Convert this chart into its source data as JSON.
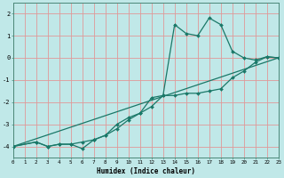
{
  "title": "",
  "xlabel": "Humidex (Indice chaleur)",
  "bg_color": "#c0e8e8",
  "grid_color": "#e09898",
  "line_color": "#1a7868",
  "xlim": [
    0,
    23
  ],
  "ylim": [
    -4.5,
    2.5
  ],
  "yticks": [
    -4,
    -3,
    -2,
    -1,
    0,
    1,
    2
  ],
  "xticks": [
    0,
    1,
    2,
    3,
    4,
    5,
    6,
    7,
    8,
    9,
    10,
    11,
    12,
    13,
    14,
    15,
    16,
    17,
    18,
    19,
    20,
    21,
    22,
    23
  ],
  "line1_x": [
    0,
    2,
    3,
    4,
    5,
    6,
    7,
    8,
    9,
    10,
    11,
    12,
    13,
    14,
    15,
    16,
    17,
    18,
    19,
    20,
    21,
    22,
    23
  ],
  "line1_y": [
    -4.0,
    -3.8,
    -4.0,
    -3.9,
    -3.9,
    -4.1,
    -3.7,
    -3.5,
    -3.0,
    -2.7,
    -2.5,
    -1.8,
    -1.7,
    1.5,
    1.1,
    1.0,
    1.8,
    1.5,
    0.3,
    0.0,
    -0.1,
    0.05,
    0.0
  ],
  "line2_x": [
    0,
    2,
    3,
    4,
    5,
    6,
    7,
    8,
    9,
    10,
    11,
    12,
    13,
    14,
    15,
    16,
    17,
    18,
    19,
    20,
    21,
    22,
    23
  ],
  "line2_y": [
    -4.0,
    -3.8,
    -4.0,
    -3.9,
    -3.9,
    -3.8,
    -3.7,
    -3.5,
    -3.2,
    -2.8,
    -2.5,
    -2.2,
    -1.7,
    -1.7,
    -1.6,
    -1.6,
    -1.5,
    -1.4,
    -0.9,
    -0.6,
    -0.2,
    0.05,
    0.0
  ],
  "line3_x": [
    0,
    23
  ],
  "line3_y": [
    -4.0,
    0.0
  ],
  "markersize": 2.0,
  "linewidth": 0.9
}
